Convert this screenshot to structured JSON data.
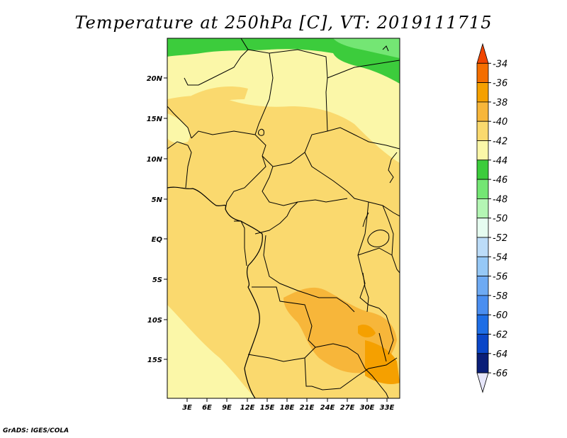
{
  "title": "Temperature at 250hPa [C], VT: 2019111715",
  "credit": "GrADS: IGES/COLA",
  "map": {
    "lat_labels": [
      "20N",
      "15N",
      "10N",
      "5N",
      "EQ",
      "5S",
      "10S",
      "15S"
    ],
    "lon_labels": [
      "3E",
      "6E",
      "9E",
      "12E",
      "15E",
      "18E",
      "21E",
      "24E",
      "27E",
      "30E",
      "33E"
    ]
  },
  "colorbar": {
    "labels": [
      "-34",
      "-36",
      "-38",
      "-40",
      "-42",
      "-44",
      "-46",
      "-48",
      "-50",
      "-52",
      "-54",
      "-56",
      "-58",
      "-60",
      "-62",
      "-64",
      "-66"
    ],
    "colors": [
      "#f04500",
      "#f46e00",
      "#f5a000",
      "#f7b63a",
      "#fad96e",
      "#fbf7a8",
      "#3ccc3c",
      "#74e674",
      "#b4f6b4",
      "#e6fcf0",
      "#bcdcf8",
      "#96c8f6",
      "#6eaaf3",
      "#4a8ef0",
      "#1e6ee6",
      "#0a46c8",
      "#0a1e78",
      "#e6e6fa"
    ]
  }
}
